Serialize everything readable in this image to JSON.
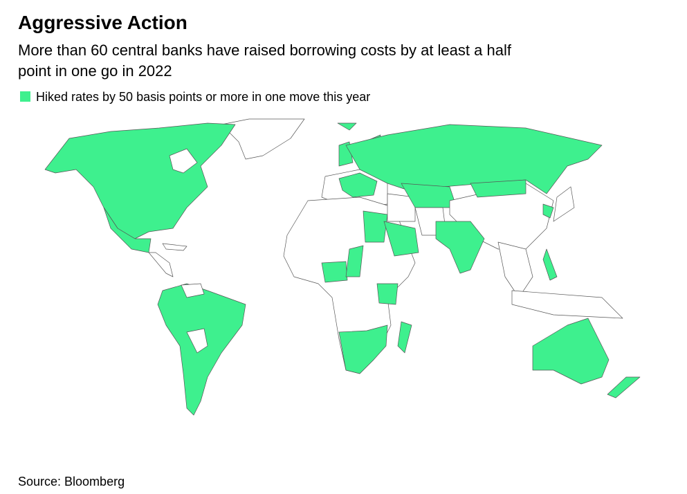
{
  "header": {
    "title": "Aggressive Action",
    "subtitle_line1": "More than 60 central banks have raised borrowing costs by at least a half",
    "subtitle_line2": "point in one go in 2022"
  },
  "legend": {
    "label": "Hiked rates by 50 basis points or more in one move this year",
    "color": "#3ef08e"
  },
  "footer": {
    "source": "Source: Bloomberg"
  }
}
